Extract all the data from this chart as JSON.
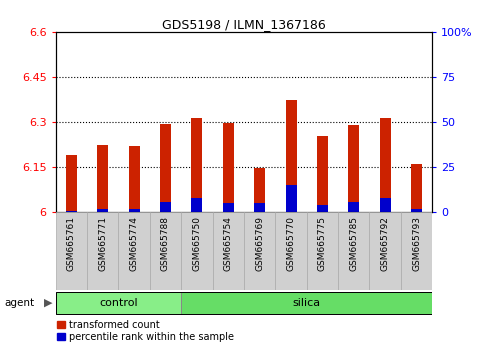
{
  "title": "GDS5198 / ILMN_1367186",
  "samples": [
    "GSM665761",
    "GSM665771",
    "GSM665774",
    "GSM665788",
    "GSM665750",
    "GSM665754",
    "GSM665769",
    "GSM665770",
    "GSM665775",
    "GSM665785",
    "GSM665792",
    "GSM665793"
  ],
  "transformed_counts": [
    6.19,
    6.225,
    6.22,
    6.295,
    6.315,
    6.298,
    6.148,
    6.375,
    6.255,
    6.29,
    6.315,
    6.16
  ],
  "percentile_ranks": [
    1,
    2,
    2,
    6,
    8,
    5,
    5,
    15,
    4,
    6,
    8,
    2
  ],
  "ylim_left": [
    6.0,
    6.6
  ],
  "ylim_right": [
    0,
    100
  ],
  "yticks_left": [
    6.0,
    6.15,
    6.3,
    6.45,
    6.6
  ],
  "yticks_right": [
    0,
    25,
    50,
    75,
    100
  ],
  "ytick_labels_left": [
    "6",
    "6.15",
    "6.3",
    "6.45",
    "6.6"
  ],
  "ytick_labels_right": [
    "0",
    "25",
    "50",
    "75",
    "100%"
  ],
  "hlines": [
    6.15,
    6.3,
    6.45
  ],
  "bar_color_red": "#cc2200",
  "bar_color_blue": "#0000cc",
  "bar_width": 0.35,
  "n_control": 4,
  "n_silica": 8,
  "control_color": "#88ee88",
  "silica_color": "#66dd66",
  "agent_label": "agent",
  "legend_red": "transformed count",
  "legend_blue": "percentile rank within the sample",
  "plot_bg": "#f0f0f0",
  "cell_bg": "#d0d0d0"
}
